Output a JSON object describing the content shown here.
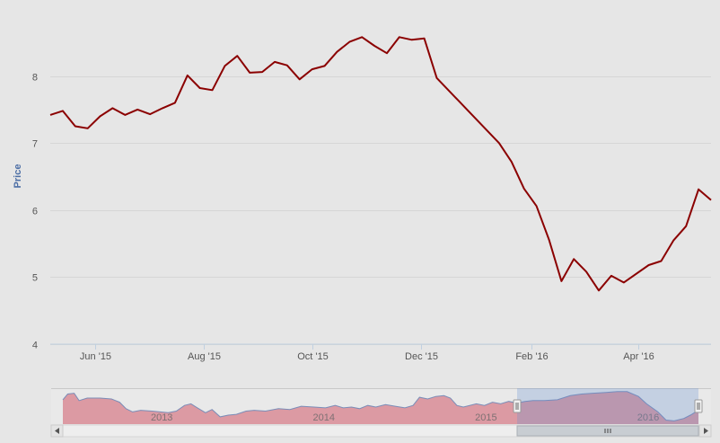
{
  "chart_data": {
    "type": "line",
    "title": "",
    "ylabel": "Price",
    "xlabel": "",
    "ylim": [
      4,
      9
    ],
    "yticks": [
      4,
      5,
      6,
      7,
      8
    ],
    "xticks": [
      {
        "date": "2015-06-01",
        "label": "Jun '15"
      },
      {
        "date": "2015-08-01",
        "label": "Aug '15"
      },
      {
        "date": "2015-10-01",
        "label": "Oct '15"
      },
      {
        "date": "2015-12-01",
        "label": "Dec '15"
      },
      {
        "date": "2016-02-01",
        "label": "Feb '16"
      },
      {
        "date": "2016-04-01",
        "label": "Apr '16"
      }
    ],
    "xrange": [
      "2015-05-07",
      "2016-05-12"
    ],
    "grid": true,
    "series": [
      {
        "color": "#8b0000",
        "points": [
          [
            "2015-05-07",
            7.42
          ],
          [
            "2015-05-14",
            7.48
          ],
          [
            "2015-05-21",
            7.25
          ],
          [
            "2015-05-28",
            7.22
          ],
          [
            "2015-06-04",
            7.4
          ],
          [
            "2015-06-11",
            7.52
          ],
          [
            "2015-06-18",
            7.42
          ],
          [
            "2015-06-25",
            7.5
          ],
          [
            "2015-07-02",
            7.43
          ],
          [
            "2015-07-09",
            7.52
          ],
          [
            "2015-07-16",
            7.6
          ],
          [
            "2015-07-23",
            8.01
          ],
          [
            "2015-07-30",
            7.82
          ],
          [
            "2015-08-06",
            7.79
          ],
          [
            "2015-08-13",
            8.15
          ],
          [
            "2015-08-20",
            8.3
          ],
          [
            "2015-08-27",
            8.05
          ],
          [
            "2015-09-03",
            8.06
          ],
          [
            "2015-09-10",
            8.21
          ],
          [
            "2015-09-17",
            8.16
          ],
          [
            "2015-09-24",
            7.95
          ],
          [
            "2015-10-01",
            8.1
          ],
          [
            "2015-10-08",
            8.15
          ],
          [
            "2015-10-15",
            8.36
          ],
          [
            "2015-10-22",
            8.51
          ],
          [
            "2015-10-29",
            8.58
          ],
          [
            "2015-11-05",
            8.45
          ],
          [
            "2015-11-12",
            8.34
          ],
          [
            "2015-11-19",
            8.58
          ],
          [
            "2015-11-26",
            8.54
          ],
          [
            "2015-12-03",
            8.56
          ],
          [
            "2015-12-10",
            7.97
          ],
          [
            "2016-01-14",
            7.0
          ],
          [
            "2016-01-21",
            6.72
          ],
          [
            "2016-01-28",
            6.32
          ],
          [
            "2016-02-04",
            6.06
          ],
          [
            "2016-02-11",
            5.56
          ],
          [
            "2016-02-18",
            4.94
          ],
          [
            "2016-02-25",
            5.27
          ],
          [
            "2016-03-03",
            5.08
          ],
          [
            "2016-03-10",
            4.8
          ],
          [
            "2016-03-17",
            5.02
          ],
          [
            "2016-03-24",
            4.92
          ],
          [
            "2016-04-07",
            5.18
          ],
          [
            "2016-04-14",
            5.24
          ],
          [
            "2016-04-21",
            5.55
          ],
          [
            "2016-04-28",
            5.76
          ],
          [
            "2016-05-05",
            6.31
          ],
          [
            "2016-05-12",
            6.15
          ]
        ]
      }
    ],
    "navigator": {
      "year_labels": [
        "2013",
        "2014",
        "2015",
        "2016"
      ],
      "range_years": [
        2012.45,
        2016.37
      ],
      "selected": [
        "2015-05-07",
        "2016-05-12"
      ],
      "history": [
        [
          2012.45,
          7.5
        ],
        [
          2012.48,
          8.2
        ],
        [
          2012.52,
          8.3
        ],
        [
          2012.55,
          7.4
        ],
        [
          2012.6,
          7.7
        ],
        [
          2012.68,
          7.7
        ],
        [
          2012.75,
          7.6
        ],
        [
          2012.8,
          7.2
        ],
        [
          2012.84,
          6.4
        ],
        [
          2012.88,
          6.0
        ],
        [
          2012.93,
          6.2
        ],
        [
          2013.0,
          6.1
        ],
        [
          2013.05,
          6.0
        ],
        [
          2013.1,
          5.9
        ],
        [
          2013.15,
          6.1
        ],
        [
          2013.2,
          6.8
        ],
        [
          2013.24,
          7.0
        ],
        [
          2013.28,
          6.5
        ],
        [
          2013.33,
          5.9
        ],
        [
          2013.37,
          6.3
        ],
        [
          2013.42,
          5.4
        ],
        [
          2013.47,
          5.6
        ],
        [
          2013.52,
          5.7
        ],
        [
          2013.58,
          6.1
        ],
        [
          2013.63,
          6.2
        ],
        [
          2013.7,
          6.1
        ],
        [
          2013.78,
          6.4
        ],
        [
          2013.85,
          6.3
        ],
        [
          2013.92,
          6.7
        ],
        [
          2014.0,
          6.6
        ],
        [
          2014.07,
          6.5
        ],
        [
          2014.13,
          6.8
        ],
        [
          2014.18,
          6.5
        ],
        [
          2014.23,
          6.6
        ],
        [
          2014.28,
          6.4
        ],
        [
          2014.33,
          6.8
        ],
        [
          2014.38,
          6.6
        ],
        [
          2014.44,
          6.9
        ],
        [
          2014.5,
          6.7
        ],
        [
          2014.56,
          6.5
        ],
        [
          2014.61,
          6.8
        ],
        [
          2014.65,
          7.8
        ],
        [
          2014.7,
          7.6
        ],
        [
          2014.75,
          7.9
        ],
        [
          2014.8,
          8.0
        ],
        [
          2014.84,
          7.7
        ],
        [
          2014.88,
          6.8
        ],
        [
          2014.92,
          6.6
        ],
        [
          2015.0,
          7.0
        ],
        [
          2015.05,
          6.8
        ],
        [
          2015.1,
          7.2
        ],
        [
          2015.15,
          7.0
        ],
        [
          2015.2,
          7.3
        ],
        [
          2015.25,
          7.1
        ],
        [
          2015.3,
          7.3
        ],
        [
          2015.35,
          7.4
        ],
        [
          2015.42,
          7.4
        ],
        [
          2015.5,
          7.5
        ],
        [
          2015.58,
          8.0
        ],
        [
          2015.65,
          8.2
        ],
        [
          2015.72,
          8.3
        ],
        [
          2015.8,
          8.4
        ],
        [
          2015.87,
          8.5
        ],
        [
          2015.93,
          8.5
        ],
        [
          2016.0,
          7.9
        ],
        [
          2016.05,
          7.0
        ],
        [
          2016.12,
          6.0
        ],
        [
          2016.17,
          5.0
        ],
        [
          2016.22,
          4.9
        ],
        [
          2016.28,
          5.2
        ],
        [
          2016.32,
          5.6
        ],
        [
          2016.37,
          6.2
        ]
      ]
    }
  }
}
